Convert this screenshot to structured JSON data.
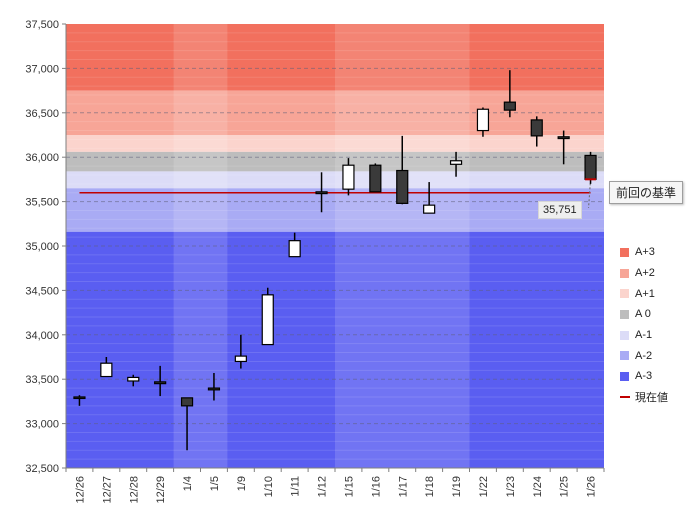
{
  "chart_data": {
    "type": "candlestick",
    "title": "",
    "xlabel": "",
    "ylabel": "",
    "ylim": [
      32500,
      37500
    ],
    "y_ticks": [
      "32,500",
      "33,000",
      "33,500",
      "34,000",
      "34,500",
      "35,000",
      "35,500",
      "36,000",
      "36,500",
      "37,000",
      "37,500"
    ],
    "categories": [
      "12/26",
      "12/27",
      "12/28",
      "12/29",
      "1/4",
      "1/5",
      "1/9",
      "1/10",
      "1/11",
      "1/12",
      "1/15",
      "1/16",
      "1/17",
      "1/18",
      "1/19",
      "1/22",
      "1/23",
      "1/24",
      "1/25",
      "1/26"
    ],
    "candles": [
      {
        "date": "12/26",
        "open": 33300,
        "high": 33320,
        "low": 33200,
        "close": 33290
      },
      {
        "date": "12/27",
        "open": 33530,
        "high": 33750,
        "low": 33530,
        "close": 33680
      },
      {
        "date": "12/28",
        "open": 33480,
        "high": 33550,
        "low": 33420,
        "close": 33520
      },
      {
        "date": "12/29",
        "open": 33470,
        "high": 33650,
        "low": 33310,
        "close": 33450
      },
      {
        "date": "1/4",
        "open": 33290,
        "high": 33290,
        "low": 32700,
        "close": 33200
      },
      {
        "date": "1/5",
        "open": 33400,
        "high": 33570,
        "low": 33260,
        "close": 33380
      },
      {
        "date": "1/9",
        "open": 33700,
        "high": 34000,
        "low": 33620,
        "close": 33760
      },
      {
        "date": "1/10",
        "open": 33890,
        "high": 34530,
        "low": 33890,
        "close": 34450
      },
      {
        "date": "1/11",
        "open": 34880,
        "high": 35150,
        "low": 34880,
        "close": 35060
      },
      {
        "date": "1/12",
        "open": 35610,
        "high": 35830,
        "low": 35380,
        "close": 35590
      },
      {
        "date": "1/15",
        "open": 35640,
        "high": 35990,
        "low": 35570,
        "close": 35910
      },
      {
        "date": "1/16",
        "open": 35910,
        "high": 35930,
        "low": 35610,
        "close": 35610
      },
      {
        "date": "1/17",
        "open": 35850,
        "high": 36240,
        "low": 35470,
        "close": 35480
      },
      {
        "date": "1/18",
        "open": 35370,
        "high": 35720,
        "low": 35370,
        "close": 35460
      },
      {
        "date": "1/19",
        "open": 35920,
        "high": 36060,
        "low": 35780,
        "close": 35960
      },
      {
        "date": "1/22",
        "open": 36300,
        "high": 36560,
        "low": 36230,
        "close": 36540
      },
      {
        "date": "1/23",
        "open": 36620,
        "high": 36980,
        "low": 36450,
        "close": 36530
      },
      {
        "date": "1/24",
        "open": 36420,
        "high": 36460,
        "low": 36120,
        "close": 36240
      },
      {
        "date": "1/25",
        "open": 36230,
        "high": 36300,
        "low": 35920,
        "close": 36210
      },
      {
        "date": "1/26",
        "open": 36020,
        "high": 36060,
        "low": 35700,
        "close": 35751
      }
    ],
    "bands": [
      {
        "name": "A+3",
        "from": 36750,
        "to": 37500,
        "color": "#f2705e"
      },
      {
        "name": "A+2",
        "from": 36250,
        "to": 36750,
        "color": "#f7a597"
      },
      {
        "name": "A+1",
        "from": 36060,
        "to": 36250,
        "color": "#fbd4cd"
      },
      {
        "name": "A 0",
        "from": 35840,
        "to": 36060,
        "color": "#bdbdbd"
      },
      {
        "name": "A-1",
        "from": 35650,
        "to": 35840,
        "color": "#dcdcf7"
      },
      {
        "name": "A-2",
        "from": 35160,
        "to": 35650,
        "color": "#a9abf4"
      },
      {
        "name": "A-3",
        "from": 32500,
        "to": 35160,
        "color": "#5a5ef1"
      }
    ],
    "week_stripes": {
      "start_index": 4,
      "end_index": 6,
      "alt_start": 10,
      "alt_end": 15
    },
    "reference_value": 35600,
    "reference_label": "前回の基準",
    "current_value": 35751,
    "current_value_label": "35,751",
    "legend": [
      {
        "label": "A+3",
        "color": "#f2705e",
        "type": "square"
      },
      {
        "label": "A+2",
        "color": "#f7a597",
        "type": "square"
      },
      {
        "label": "A+1",
        "color": "#fbd4cd",
        "type": "square"
      },
      {
        "label": "A 0",
        "color": "#bdbdbd",
        "type": "square"
      },
      {
        "label": "A-1",
        "color": "#dcdcf7",
        "type": "square"
      },
      {
        "label": "A-2",
        "color": "#a9abf4",
        "type": "square"
      },
      {
        "label": "A-3",
        "color": "#5a5ef1",
        "type": "square"
      },
      {
        "label": "現在値",
        "color": "#c00000",
        "type": "line"
      }
    ],
    "legend_position": "right",
    "grid": true
  }
}
